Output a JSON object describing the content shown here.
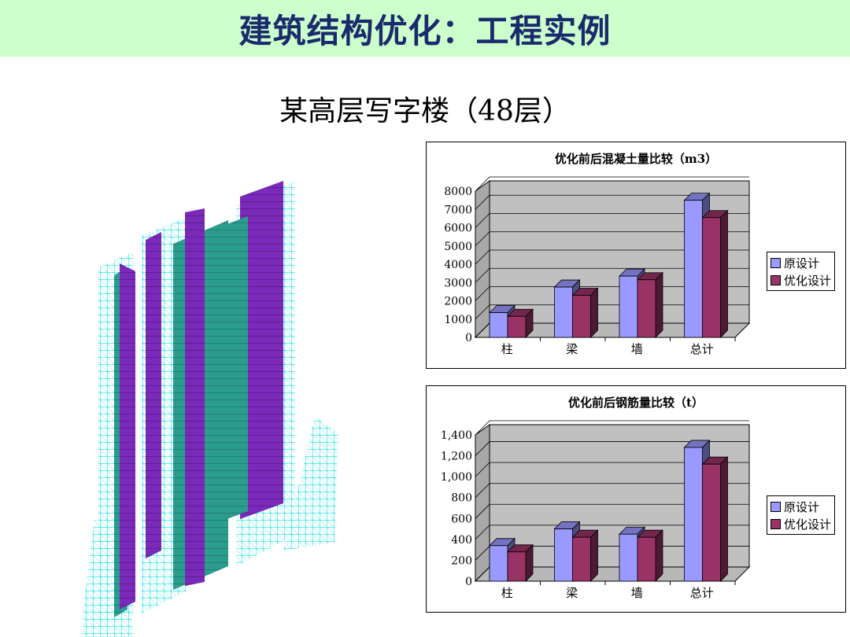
{
  "header": {
    "title": "建筑结构优化：工程实例",
    "subtitle": "某高层写字楼（48层）"
  },
  "colors": {
    "banner": "#ccffcc",
    "original": "#9999ff",
    "optimized": "#993366",
    "frame_cyan": "#33e6e6",
    "wall_teal": "#2a9d8f",
    "wall_purple": "#7a2ab8"
  },
  "chart_data": [
    {
      "type": "bar",
      "title": "优化前后混凝土量比较（m3）",
      "categories": [
        "柱",
        "梁",
        "墙",
        "总计"
      ],
      "series": [
        {
          "name": "原设计",
          "values": [
            1350,
            2750,
            3350,
            7500
          ]
        },
        {
          "name": "优化设计",
          "values": [
            1150,
            2300,
            3150,
            6550
          ]
        }
      ],
      "ylim": [
        0,
        8000
      ],
      "yticks": [
        "0",
        "1000",
        "2000",
        "3000",
        "4000",
        "5000",
        "6000",
        "7000",
        "8000"
      ],
      "grid": true,
      "legend": "right"
    },
    {
      "type": "bar",
      "title": "优化前后钢筋量比较（t）",
      "categories": [
        "柱",
        "梁",
        "墙",
        "总计"
      ],
      "series": [
        {
          "name": "原设计",
          "values": [
            340,
            500,
            450,
            1280
          ]
        },
        {
          "name": "优化设计",
          "values": [
            280,
            420,
            420,
            1120
          ]
        }
      ],
      "ylim": [
        0,
        1400
      ],
      "yticks": [
        "0",
        "200",
        "400",
        "600",
        "800",
        "1,000",
        "1,200",
        "1,400"
      ],
      "grid": true,
      "legend": "right"
    }
  ]
}
